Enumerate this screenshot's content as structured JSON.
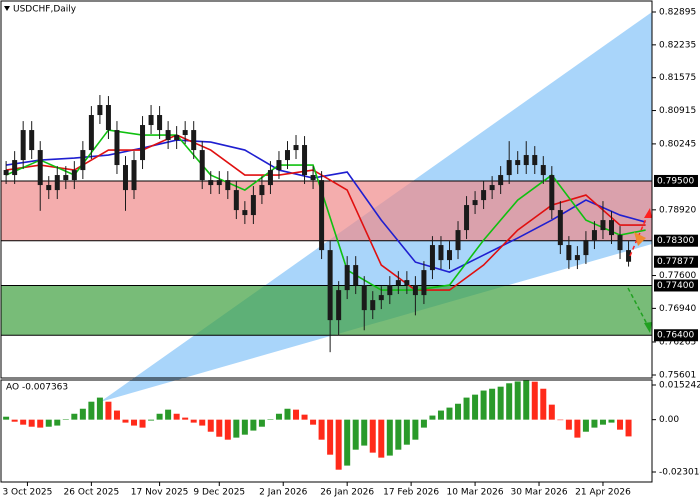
{
  "chart_data": [
    {
      "type": "candlestick",
      "title": "USDCHF,Daily",
      "x": [
        0,
        2,
        4,
        6,
        8,
        10,
        12,
        14,
        16,
        18,
        20,
        22,
        24,
        26,
        28,
        30,
        32,
        34,
        36,
        38,
        40,
        42,
        44,
        46,
        48,
        50,
        52,
        54,
        56,
        58,
        60,
        62,
        64,
        66,
        68,
        70,
        72,
        74,
        76,
        78,
        80,
        82,
        84,
        86,
        88,
        90,
        92,
        94,
        96,
        98,
        100,
        102,
        104,
        106,
        108,
        110,
        112,
        114,
        116,
        118,
        120,
        122,
        124,
        126,
        128,
        130,
        132,
        134,
        136,
        138,
        140,
        142,
        144,
        146
      ],
      "open": [
        0.7972,
        0.79619,
        0.7992,
        0.80523,
        0.80121,
        0.79418,
        0.79317,
        0.79619,
        0.79518,
        0.79719,
        0.80121,
        0.80825,
        0.81026,
        0.80523,
        0.7982,
        0.79317,
        0.7992,
        0.80624,
        0.80825,
        0.80523,
        0.80322,
        0.80423,
        0.80523,
        0.80121,
        0.79518,
        0.79418,
        0.79518,
        0.79317,
        0.78915,
        0.78815,
        0.79217,
        0.79418,
        0.79719,
        0.7992,
        0.80121,
        0.80222,
        0.79619,
        0.79518,
        0.78111,
        0.76704,
        0.77307,
        0.7781,
        0.77408,
        0.76905,
        0.77106,
        0.77207,
        0.77408,
        0.77508,
        0.77408,
        0.77207,
        0.77709,
        0.78212,
        0.7791,
        0.78111,
        0.78513,
        0.79016,
        0.79116,
        0.79317,
        0.79418,
        0.79619,
        0.7992,
        0.7982,
        0.80021,
        0.7982,
        0.79619,
        0.78915,
        0.78212,
        0.7791,
        0.78011,
        0.78312,
        0.78513,
        0.78714,
        0.78413,
        0.78111
      ],
      "high": [
        0.799,
        0.801,
        0.80703,
        0.80703,
        0.80301,
        0.79598,
        0.79799,
        0.79799,
        0.79899,
        0.80301,
        0.81005,
        0.81227,
        0.81206,
        0.80703,
        0.8,
        0.801,
        0.80804,
        0.81026,
        0.81005,
        0.80703,
        0.80603,
        0.80703,
        0.80703,
        0.80301,
        0.79698,
        0.79698,
        0.79698,
        0.79497,
        0.79095,
        0.79397,
        0.79598,
        0.79899,
        0.801,
        0.80301,
        0.80423,
        0.80402,
        0.79799,
        0.79698,
        0.78291,
        0.77487,
        0.7799,
        0.7799,
        0.77588,
        0.77286,
        0.77387,
        0.77588,
        0.77688,
        0.77688,
        0.77588,
        0.77889,
        0.78392,
        0.78392,
        0.78291,
        0.78693,
        0.79196,
        0.79296,
        0.79497,
        0.79598,
        0.79799,
        0.803,
        0.801,
        0.803,
        0.80201,
        0.8,
        0.79799,
        0.79095,
        0.78392,
        0.78191,
        0.78492,
        0.78693,
        0.79095,
        0.78894,
        0.78593,
        0.78291
      ],
      "low": [
        0.79439,
        0.79439,
        0.7974,
        0.79941,
        0.789,
        0.79137,
        0.79137,
        0.79338,
        0.79338,
        0.79539,
        0.79941,
        0.80645,
        0.80343,
        0.7964,
        0.789,
        0.79137,
        0.7974,
        0.80444,
        0.80343,
        0.80142,
        0.80142,
        0.80243,
        0.79941,
        0.79338,
        0.79238,
        0.79238,
        0.79137,
        0.78735,
        0.78635,
        0.78635,
        0.79037,
        0.79238,
        0.79539,
        0.7974,
        0.79941,
        0.79439,
        0.79338,
        0.77931,
        0.7606,
        0.764,
        0.77127,
        0.77228,
        0.765,
        0.76725,
        0.76926,
        0.77027,
        0.77228,
        0.77228,
        0.768,
        0.77027,
        0.77529,
        0.7773,
        0.7773,
        0.77931,
        0.78333,
        0.78836,
        0.78936,
        0.79137,
        0.79238,
        0.79439,
        0.7964,
        0.7964,
        0.7964,
        0.79439,
        0.78735,
        0.78032,
        0.7773,
        0.7773,
        0.77831,
        0.78132,
        0.78333,
        0.78233,
        0.77931,
        0.7778
      ],
      "close": [
        0.79619,
        0.7992,
        0.80523,
        0.80121,
        0.79418,
        0.79317,
        0.79619,
        0.79518,
        0.79719,
        0.80121,
        0.80825,
        0.81026,
        0.80523,
        0.7982,
        0.79317,
        0.7992,
        0.80624,
        0.80825,
        0.80523,
        0.80322,
        0.80423,
        0.80523,
        0.80121,
        0.79518,
        0.79418,
        0.79518,
        0.79317,
        0.78915,
        0.78815,
        0.79217,
        0.79418,
        0.79719,
        0.7992,
        0.80121,
        0.80222,
        0.79619,
        0.79518,
        0.78111,
        0.76704,
        0.77307,
        0.7781,
        0.77408,
        0.76905,
        0.77106,
        0.77207,
        0.77408,
        0.77508,
        0.77408,
        0.77207,
        0.77709,
        0.78212,
        0.7791,
        0.78111,
        0.78513,
        0.79016,
        0.79116,
        0.79317,
        0.79418,
        0.79619,
        0.7992,
        0.7982,
        0.80021,
        0.7982,
        0.79619,
        0.78915,
        0.78212,
        0.7791,
        0.78011,
        0.78312,
        0.78513,
        0.78714,
        0.78413,
        0.78111,
        0.77877
      ],
      "candle_color": "#1a1a1a",
      "series": [
        {
          "color": "#1f1fd0",
          "x": [
            0,
            8,
            16,
            24,
            32,
            40,
            48,
            56,
            64,
            72,
            80,
            88,
            96,
            104,
            112,
            120,
            128,
            136,
            144,
            150
          ],
          "values": [
            0.7982,
            0.7992,
            0.7996,
            0.80021,
            0.80161,
            0.80322,
            0.80282,
            0.80121,
            0.79719,
            0.79558,
            0.79679,
            0.78714,
            0.7787,
            0.77669,
            0.78011,
            0.78353,
            0.78714,
            0.79116,
            0.78815,
            0.78674
          ]
        },
        {
          "color": "#e01010",
          "x": [
            0,
            8,
            16,
            24,
            32,
            40,
            48,
            56,
            64,
            72,
            80,
            88,
            96,
            104,
            112,
            120,
            128,
            136,
            144,
            150
          ],
          "values": [
            0.79719,
            0.7982,
            0.79719,
            0.80121,
            0.80121,
            0.80423,
            0.80121,
            0.79619,
            0.79619,
            0.79719,
            0.79317,
            0.7781,
            0.77307,
            0.77307,
            0.7781,
            0.78513,
            0.79016,
            0.79217,
            0.78614,
            0.78614
          ]
        },
        {
          "color": "#10c010",
          "x": [
            0,
            8,
            16,
            24,
            32,
            40,
            48,
            56,
            64,
            72,
            80,
            88,
            96,
            104,
            112,
            120,
            128,
            136,
            144,
            150
          ],
          "values": [
            0.79619,
            0.7992,
            0.79619,
            0.80523,
            0.80423,
            0.80423,
            0.79619,
            0.79317,
            0.7982,
            0.7982,
            0.77709,
            0.77307,
            0.77307,
            0.77408,
            0.78312,
            0.79116,
            0.79619,
            0.78714,
            0.78413,
            0.78513
          ]
        }
      ],
      "zones": [
        {
          "high": {
            "value": 0.795,
            "label": "0.79500"
          },
          "low": {
            "value": 0.783,
            "label": "0.78300"
          },
          "color": "#f08a8a"
        },
        {
          "high": {
            "value": 0.774,
            "label": "0.77400"
          },
          "low": {
            "value": 0.764,
            "label": "0.76400"
          },
          "color": "#3f9f3f"
        }
      ],
      "xlim": [
        -1.2,
        151.5
      ],
      "xticks": [
        {
          "value": 5,
          "label": "3 Oct 2025"
        },
        {
          "value": 20,
          "label": "26 Oct 2025"
        },
        {
          "value": 36,
          "label": "17 Nov 2025"
        },
        {
          "value": 50,
          "label": "9 Dec 2025"
        },
        {
          "value": 65,
          "label": "2 Jan 2026"
        },
        {
          "value": 80,
          "label": "26 Jan 2026"
        },
        {
          "value": 95,
          "label": "17 Feb 2026"
        },
        {
          "value": 110,
          "label": "10 Mar 2026"
        },
        {
          "value": 125,
          "label": "30 Mar 2026"
        },
        {
          "value": 140,
          "label": "21 Apr 2026"
        }
      ],
      "ylim": [
        0.75541,
        0.83096
      ],
      "yticks": [
        0.82895,
        0.82235,
        0.81575,
        0.80915,
        0.80245,
        {
          "value": 0.7892,
          "label": "0.78920"
        },
        {
          "value": 0.776,
          "label": "0.77600"
        },
        {
          "value": 0.7694,
          "label": "0.76940"
        },
        0.76265,
        0.75601
      ]
    },
    {
      "type": "bar",
      "title": "AO -0.007363",
      "x": [
        0,
        2,
        4,
        6,
        8,
        10,
        12,
        14,
        16,
        18,
        20,
        22,
        24,
        26,
        28,
        30,
        32,
        34,
        36,
        38,
        40,
        42,
        44,
        46,
        48,
        50,
        52,
        54,
        56,
        58,
        60,
        62,
        64,
        66,
        68,
        70,
        72,
        74,
        76,
        78,
        80,
        82,
        84,
        86,
        88,
        90,
        92,
        94,
        96,
        98,
        100,
        102,
        104,
        106,
        108,
        110,
        112,
        114,
        116,
        118,
        120,
        122,
        124,
        126,
        128,
        130,
        132,
        134,
        136,
        138,
        140,
        142,
        144,
        146
      ],
      "values": [
        0.0013,
        -0.0009,
        -0.0022,
        -0.0031,
        -0.0035,
        -0.0031,
        -0.0026,
        0.0002,
        0.0026,
        0.0048,
        0.0079,
        0.0097,
        0.0079,
        0.004,
        -0.0013,
        -0.0026,
        -0.0035,
        -0.0004,
        0.0026,
        0.0044,
        0.0026,
        0.0009,
        -0.0013,
        -0.0026,
        -0.0053,
        -0.0075,
        -0.0088,
        -0.0079,
        -0.0066,
        -0.0048,
        -0.0031,
        0.0002,
        0.0026,
        0.0048,
        0.0044,
        0.0022,
        -0.0022,
        -0.0088,
        -0.0154,
        -0.022,
        -0.0202,
        -0.0132,
        -0.0114,
        -0.0145,
        -0.0167,
        -0.0158,
        -0.0132,
        -0.011,
        -0.0088,
        -0.0035,
        0.0018,
        0.004,
        0.0053,
        0.007,
        0.0097,
        0.011,
        0.0128,
        0.0136,
        0.0145,
        0.016,
        0.0168,
        0.0172,
        0.0167,
        0.0136,
        0.0066,
        -0.0002,
        -0.0044,
        -0.0079,
        -0.0053,
        -0.0035,
        -0.0022,
        -0.0013,
        -0.0044,
        -0.007363
      ],
      "up_color": "#2a9a2a",
      "down_color": "#ff2a1a",
      "ylim": [
        -0.02741,
        0.01744
      ],
      "yticks": [
        0.015242,
        {
          "value": 0,
          "label": "0.00"
        },
        -0.023014
      ]
    }
  ]
}
